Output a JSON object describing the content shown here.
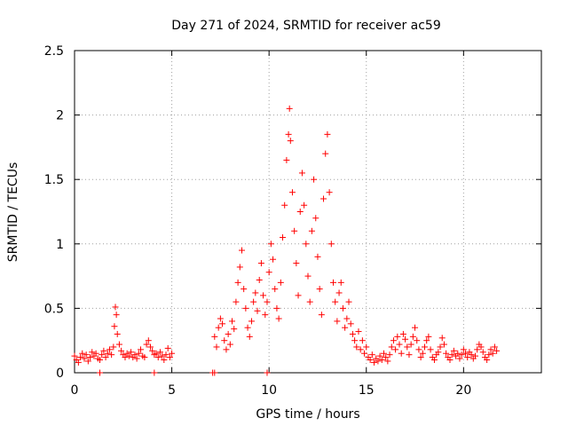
{
  "chart_data": {
    "type": "scatter",
    "title": "Day 271 of 2024, SRMTID for receiver ac59",
    "xlabel": "GPS time / hours",
    "ylabel": "SRMTID / TECUs",
    "xlim": [
      0,
      24
    ],
    "ylim": [
      0,
      2.5
    ],
    "xticks": [
      0,
      5,
      10,
      15,
      20
    ],
    "yticks": [
      0,
      0.5,
      1,
      1.5,
      2,
      2.5
    ],
    "xtick_labels": [
      "0",
      "5",
      "10",
      "15",
      "20"
    ],
    "ytick_labels": [
      "0",
      "0.5",
      "1",
      "1.5",
      "2",
      "2.5"
    ],
    "grid": true,
    "marker": "+",
    "color": "#ff0000",
    "series": [
      {
        "name": "SRMTID",
        "points": [
          [
            0.0,
            0.13
          ],
          [
            0.1,
            0.1
          ],
          [
            0.2,
            0.08
          ],
          [
            0.3,
            0.12
          ],
          [
            0.4,
            0.15
          ],
          [
            0.5,
            0.11
          ],
          [
            0.6,
            0.14
          ],
          [
            0.7,
            0.09
          ],
          [
            0.8,
            0.12
          ],
          [
            0.9,
            0.16
          ],
          [
            1.0,
            0.13
          ],
          [
            1.1,
            0.15
          ],
          [
            1.2,
            0.11
          ],
          [
            1.3,
            0.1
          ],
          [
            1.4,
            0.14
          ],
          [
            1.5,
            0.17
          ],
          [
            1.6,
            0.12
          ],
          [
            1.7,
            0.15
          ],
          [
            1.8,
            0.18
          ],
          [
            1.9,
            0.14
          ],
          [
            2.0,
            0.2
          ],
          [
            2.05,
            0.36
          ],
          [
            2.1,
            0.51
          ],
          [
            2.15,
            0.45
          ],
          [
            2.2,
            0.3
          ],
          [
            2.3,
            0.22
          ],
          [
            2.4,
            0.17
          ],
          [
            2.5,
            0.14
          ],
          [
            2.6,
            0.12
          ],
          [
            2.7,
            0.15
          ],
          [
            2.8,
            0.13
          ],
          [
            2.9,
            0.16
          ],
          [
            3.0,
            0.12
          ],
          [
            3.1,
            0.14
          ],
          [
            3.2,
            0.11
          ],
          [
            3.3,
            0.15
          ],
          [
            3.4,
            0.18
          ],
          [
            3.5,
            0.13
          ],
          [
            3.6,
            0.12
          ],
          [
            3.7,
            0.22
          ],
          [
            3.8,
            0.25
          ],
          [
            3.9,
            0.2
          ],
          [
            4.0,
            0.17
          ],
          [
            4.1,
            0.14
          ],
          [
            4.2,
            0.15
          ],
          [
            4.3,
            0.12
          ],
          [
            4.4,
            0.16
          ],
          [
            4.5,
            0.13
          ],
          [
            4.6,
            0.1
          ],
          [
            4.7,
            0.14
          ],
          [
            4.8,
            0.19
          ],
          [
            4.9,
            0.12
          ],
          [
            5.0,
            0.15
          ],
          [
            1.3,
            0.0
          ],
          [
            4.1,
            0.0
          ],
          [
            7.1,
            0.0
          ],
          [
            7.2,
            0.0
          ],
          [
            9.9,
            0.0
          ],
          [
            7.2,
            0.28
          ],
          [
            7.3,
            0.2
          ],
          [
            7.4,
            0.35
          ],
          [
            7.5,
            0.42
          ],
          [
            7.6,
            0.38
          ],
          [
            7.7,
            0.25
          ],
          [
            7.8,
            0.18
          ],
          [
            7.9,
            0.3
          ],
          [
            8.0,
            0.22
          ],
          [
            8.1,
            0.4
          ],
          [
            8.2,
            0.34
          ],
          [
            8.3,
            0.55
          ],
          [
            8.4,
            0.7
          ],
          [
            8.5,
            0.82
          ],
          [
            8.6,
            0.95
          ],
          [
            8.7,
            0.65
          ],
          [
            8.8,
            0.5
          ],
          [
            8.9,
            0.35
          ],
          [
            9.0,
            0.28
          ],
          [
            9.1,
            0.4
          ],
          [
            9.2,
            0.55
          ],
          [
            9.3,
            0.62
          ],
          [
            9.4,
            0.48
          ],
          [
            9.5,
            0.72
          ],
          [
            9.6,
            0.85
          ],
          [
            9.7,
            0.6
          ],
          [
            9.8,
            0.45
          ],
          [
            9.9,
            0.55
          ],
          [
            10.0,
            0.78
          ],
          [
            10.1,
            1.0
          ],
          [
            10.2,
            0.88
          ],
          [
            10.3,
            0.65
          ],
          [
            10.4,
            0.5
          ],
          [
            10.5,
            0.42
          ],
          [
            10.6,
            0.7
          ],
          [
            10.7,
            1.05
          ],
          [
            10.8,
            1.3
          ],
          [
            10.9,
            1.65
          ],
          [
            11.0,
            1.85
          ],
          [
            11.05,
            2.05
          ],
          [
            11.1,
            1.8
          ],
          [
            11.2,
            1.4
          ],
          [
            11.3,
            1.1
          ],
          [
            11.4,
            0.85
          ],
          [
            11.5,
            0.6
          ],
          [
            11.6,
            1.25
          ],
          [
            11.7,
            1.55
          ],
          [
            11.8,
            1.3
          ],
          [
            11.9,
            1.0
          ],
          [
            12.0,
            0.75
          ],
          [
            12.1,
            0.55
          ],
          [
            12.2,
            1.1
          ],
          [
            12.3,
            1.5
          ],
          [
            12.4,
            1.2
          ],
          [
            12.5,
            0.9
          ],
          [
            12.6,
            0.65
          ],
          [
            12.7,
            0.45
          ],
          [
            12.8,
            1.35
          ],
          [
            12.9,
            1.7
          ],
          [
            13.0,
            1.85
          ],
          [
            13.1,
            1.4
          ],
          [
            13.2,
            1.0
          ],
          [
            13.3,
            0.7
          ],
          [
            13.4,
            0.55
          ],
          [
            13.5,
            0.4
          ],
          [
            13.6,
            0.62
          ],
          [
            13.7,
            0.7
          ],
          [
            13.8,
            0.5
          ],
          [
            13.9,
            0.35
          ],
          [
            14.0,
            0.42
          ],
          [
            14.1,
            0.55
          ],
          [
            14.2,
            0.38
          ],
          [
            14.3,
            0.3
          ],
          [
            14.4,
            0.25
          ],
          [
            14.5,
            0.2
          ],
          [
            14.6,
            0.32
          ],
          [
            14.7,
            0.18
          ],
          [
            14.8,
            0.25
          ],
          [
            14.9,
            0.15
          ],
          [
            15.0,
            0.2
          ],
          [
            15.1,
            0.12
          ],
          [
            15.2,
            0.1
          ],
          [
            15.3,
            0.14
          ],
          [
            15.4,
            0.08
          ],
          [
            15.5,
            0.11
          ],
          [
            15.6,
            0.09
          ],
          [
            15.7,
            0.13
          ],
          [
            15.8,
            0.1
          ],
          [
            15.9,
            0.15
          ],
          [
            16.0,
            0.12
          ],
          [
            16.1,
            0.09
          ],
          [
            16.2,
            0.14
          ],
          [
            16.3,
            0.2
          ],
          [
            16.4,
            0.25
          ],
          [
            16.5,
            0.18
          ],
          [
            16.6,
            0.28
          ],
          [
            16.7,
            0.22
          ],
          [
            16.8,
            0.15
          ],
          [
            16.9,
            0.3
          ],
          [
            17.0,
            0.26
          ],
          [
            17.1,
            0.2
          ],
          [
            17.2,
            0.14
          ],
          [
            17.3,
            0.22
          ],
          [
            17.4,
            0.28
          ],
          [
            17.5,
            0.35
          ],
          [
            17.6,
            0.25
          ],
          [
            17.7,
            0.18
          ],
          [
            17.8,
            0.12
          ],
          [
            17.9,
            0.15
          ],
          [
            18.0,
            0.2
          ],
          [
            18.1,
            0.25
          ],
          [
            18.2,
            0.28
          ],
          [
            18.3,
            0.18
          ],
          [
            18.4,
            0.12
          ],
          [
            18.5,
            0.1
          ],
          [
            18.6,
            0.14
          ],
          [
            18.7,
            0.16
          ],
          [
            18.8,
            0.2
          ],
          [
            18.9,
            0.27
          ],
          [
            19.0,
            0.22
          ],
          [
            19.1,
            0.15
          ],
          [
            19.2,
            0.12
          ],
          [
            19.3,
            0.1
          ],
          [
            19.4,
            0.14
          ],
          [
            19.5,
            0.17
          ],
          [
            19.6,
            0.13
          ],
          [
            19.7,
            0.15
          ],
          [
            19.8,
            0.11
          ],
          [
            19.9,
            0.14
          ],
          [
            20.0,
            0.18
          ],
          [
            20.1,
            0.15
          ],
          [
            20.2,
            0.12
          ],
          [
            20.3,
            0.16
          ],
          [
            20.4,
            0.14
          ],
          [
            20.5,
            0.11
          ],
          [
            20.6,
            0.13
          ],
          [
            20.7,
            0.18
          ],
          [
            20.8,
            0.22
          ],
          [
            20.9,
            0.2
          ],
          [
            21.0,
            0.16
          ],
          [
            21.1,
            0.12
          ],
          [
            21.2,
            0.1
          ],
          [
            21.3,
            0.14
          ],
          [
            21.4,
            0.18
          ],
          [
            21.5,
            0.15
          ],
          [
            21.6,
            0.2
          ],
          [
            21.7,
            0.17
          ]
        ]
      }
    ]
  }
}
